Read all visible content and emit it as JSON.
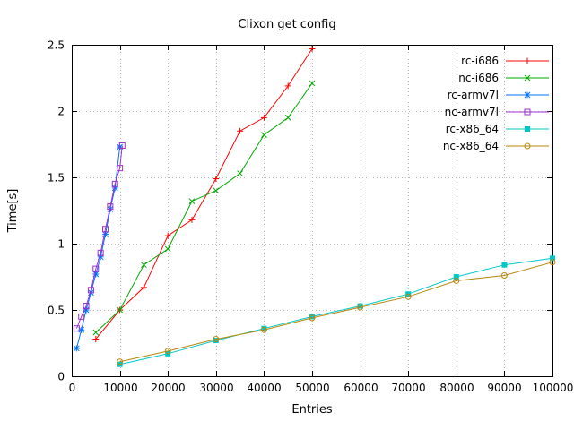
{
  "chart_data": {
    "type": "line",
    "title": "Clixon get config",
    "xlabel": "Entries",
    "ylabel": "Time[s]",
    "xlim": [
      0,
      100000
    ],
    "ylim": [
      0,
      2.5
    ],
    "xticks": [
      0,
      10000,
      20000,
      30000,
      40000,
      50000,
      60000,
      70000,
      80000,
      90000,
      100000
    ],
    "yticks": [
      0,
      0.5,
      1,
      1.5,
      2,
      2.5
    ],
    "grid": true,
    "legend_position": "top-right-inside",
    "series": [
      {
        "name": "rc-i686",
        "color": "#ff0000",
        "marker": "plus",
        "x": [
          5000,
          10000,
          15000,
          20000,
          25000,
          30000,
          35000,
          40000,
          45000,
          50000
        ],
        "y": [
          0.28,
          0.5,
          0.67,
          1.06,
          1.18,
          1.49,
          1.85,
          1.95,
          2.19,
          2.47
        ]
      },
      {
        "name": "nc-i686",
        "color": "#00a800",
        "marker": "cross",
        "x": [
          5000,
          10000,
          15000,
          20000,
          25000,
          30000,
          35000,
          40000,
          45000,
          50000
        ],
        "y": [
          0.33,
          0.5,
          0.84,
          0.96,
          1.32,
          1.4,
          1.53,
          1.82,
          1.95,
          2.21
        ]
      },
      {
        "name": "rc-armv7l",
        "color": "#0070ff",
        "marker": "asterisk",
        "x": [
          1000,
          2000,
          3000,
          4000,
          5000,
          6000,
          7000,
          8000,
          9000,
          10000
        ],
        "y": [
          0.21,
          0.35,
          0.5,
          0.63,
          0.77,
          0.9,
          1.07,
          1.26,
          1.42,
          1.73
        ]
      },
      {
        "name": "nc-armv7l",
        "color": "#a030d0",
        "marker": "square-open",
        "x": [
          1000,
          2000,
          3000,
          4000,
          5000,
          6000,
          7000,
          8000,
          9000,
          10000,
          10500
        ],
        "y": [
          0.36,
          0.45,
          0.53,
          0.65,
          0.81,
          0.93,
          1.11,
          1.28,
          1.45,
          1.57,
          1.74
        ]
      },
      {
        "name": "rc-x86_64",
        "color": "#00c8c8",
        "marker": "square-filled",
        "x": [
          10000,
          20000,
          30000,
          40000,
          50000,
          60000,
          70000,
          80000,
          90000,
          100000
        ],
        "y": [
          0.09,
          0.17,
          0.27,
          0.36,
          0.45,
          0.53,
          0.62,
          0.75,
          0.84,
          0.89
        ]
      },
      {
        "name": "nc-x86_64",
        "color": "#b8860b",
        "marker": "circle-open",
        "x": [
          10000,
          20000,
          30000,
          40000,
          50000,
          60000,
          70000,
          80000,
          90000,
          100000
        ],
        "y": [
          0.11,
          0.19,
          0.28,
          0.35,
          0.44,
          0.52,
          0.6,
          0.72,
          0.76,
          0.86
        ]
      }
    ]
  }
}
